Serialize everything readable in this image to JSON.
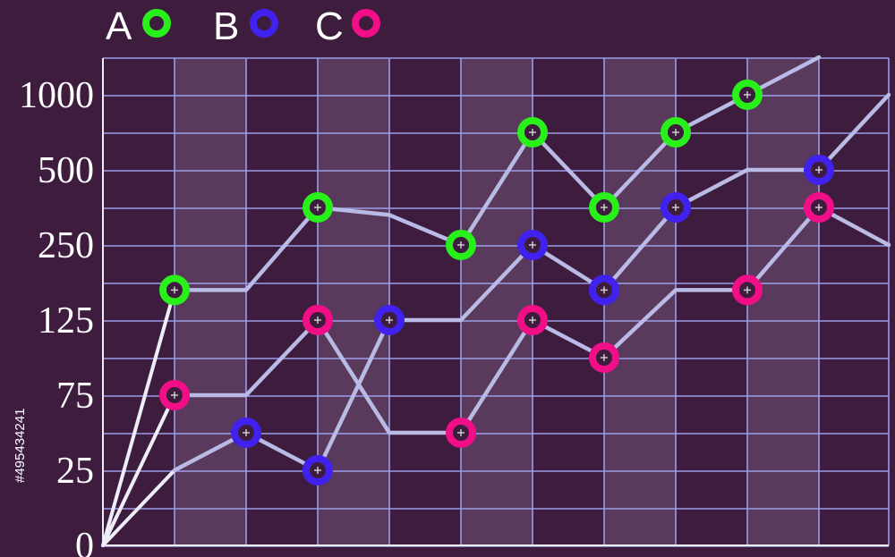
{
  "side_text": "#495434241",
  "colors": {
    "background": "#3e1c3e",
    "band": "#5a3a5c",
    "grid": "#9c9ce8",
    "line": "#b9bbe6",
    "axis": "#eeeef8"
  },
  "chart_data": {
    "type": "line",
    "title": "",
    "xlabel": "",
    "ylabel": "",
    "y_scale": "categorical (non-linear)",
    "y_ticks": [
      "0",
      "25",
      "75",
      "125",
      "250",
      "500",
      "1000"
    ],
    "grid": true,
    "legend_position": "top-left",
    "x": [
      0,
      1,
      2,
      3,
      4,
      5,
      6,
      7,
      8,
      9,
      10,
      11
    ],
    "series": [
      {
        "name": "A",
        "color": "#29f01a",
        "values": [
          0,
          175,
          175,
          375,
          350,
          250,
          750,
          375,
          750,
          1000,
          1250,
          null
        ],
        "markers": [
          false,
          true,
          false,
          true,
          false,
          true,
          true,
          true,
          true,
          true,
          false,
          false
        ]
      },
      {
        "name": "B",
        "color": "#4121ee",
        "values": [
          0,
          25,
          50,
          25,
          125,
          125,
          250,
          175,
          375,
          500,
          500,
          1000
        ],
        "markers": [
          false,
          false,
          true,
          true,
          true,
          false,
          true,
          true,
          true,
          false,
          true,
          false
        ]
      },
      {
        "name": "C",
        "color": "#f20e86",
        "values": [
          0,
          75,
          75,
          125,
          50,
          50,
          125,
          100,
          175,
          175,
          375,
          250
        ],
        "markers": [
          false,
          true,
          false,
          true,
          false,
          true,
          true,
          true,
          false,
          true,
          true,
          false
        ]
      }
    ]
  }
}
